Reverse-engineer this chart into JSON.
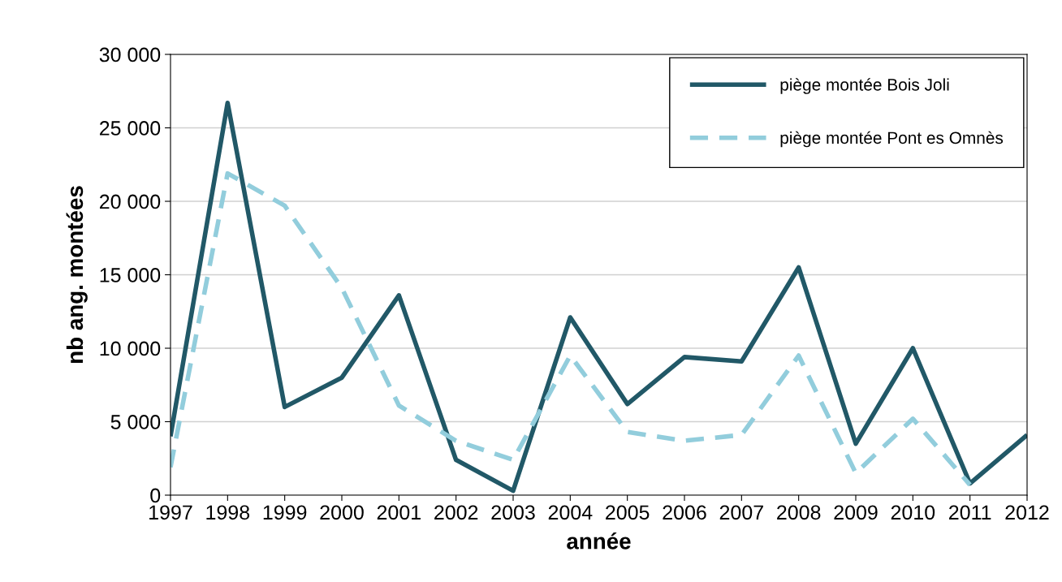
{
  "chart_data": {
    "type": "line",
    "xlabel": "année",
    "ylabel": "nb ang. montées",
    "categories": [
      "1997",
      "1998",
      "1999",
      "2000",
      "2001",
      "2002",
      "2003",
      "2004",
      "2005",
      "2006",
      "2007",
      "2008",
      "2009",
      "2010",
      "2011",
      "2012"
    ],
    "series": [
      {
        "name": "piège montée Bois Joli",
        "color": "#215867",
        "line_style": "solid",
        "values": [
          4000,
          26700,
          6000,
          8000,
          13600,
          2400,
          300,
          12100,
          6200,
          9400,
          9100,
          15500,
          3500,
          10000,
          800,
          4100
        ]
      },
      {
        "name": "piège montée Pont es Omnès",
        "color": "#92cddc",
        "line_style": "dashed",
        "values": [
          1900,
          21900,
          19700,
          14100,
          6100,
          3700,
          2400,
          9500,
          4300,
          3700,
          4100,
          9500,
          1500,
          5200,
          700,
          null
        ]
      }
    ],
    "ylim": [
      0,
      30000
    ],
    "yticks": [
      {
        "value": 0,
        "label": "0"
      },
      {
        "value": 5000,
        "label": "5 000"
      },
      {
        "value": 10000,
        "label": "10 000"
      },
      {
        "value": 15000,
        "label": "15 000"
      },
      {
        "value": 20000,
        "label": "20 000"
      },
      {
        "value": 25000,
        "label": "25 000"
      },
      {
        "value": 30000,
        "label": "30 000"
      }
    ],
    "grid": "y",
    "legend": "top right",
    "marker": "none"
  }
}
